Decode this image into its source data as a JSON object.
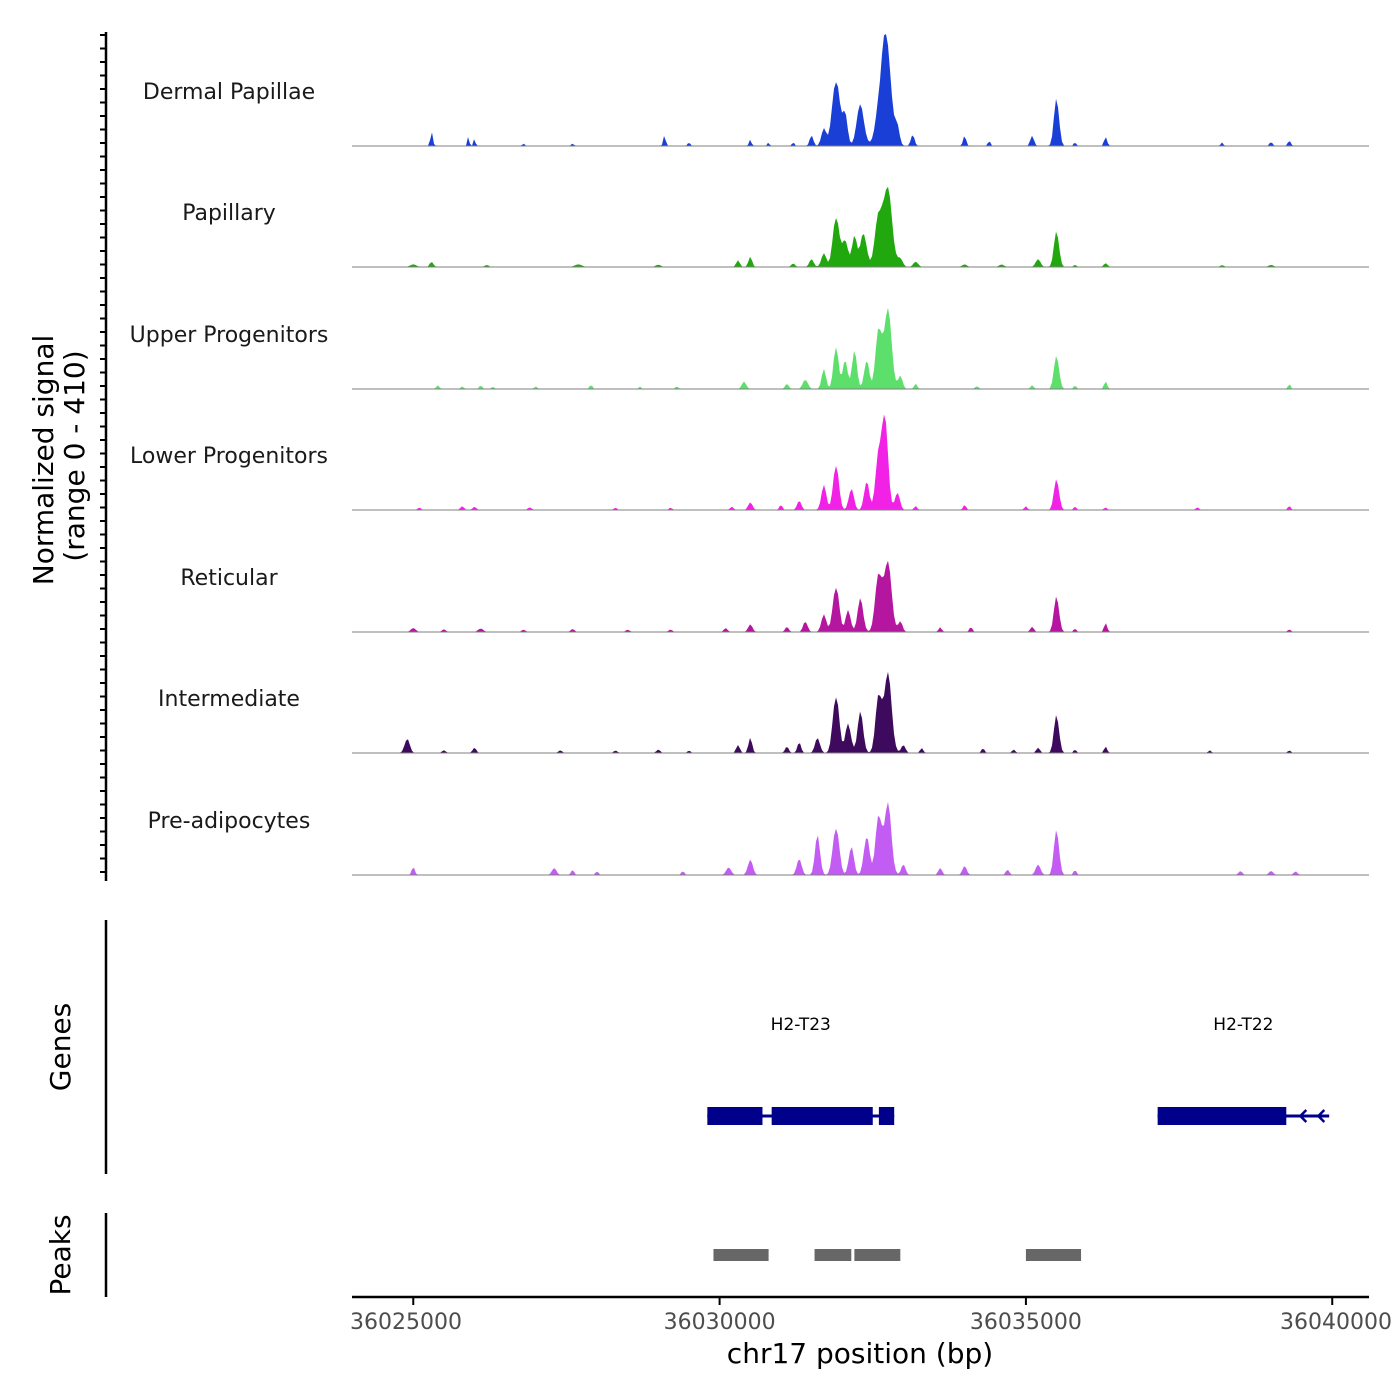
{
  "chart_data": {
    "type": "area",
    "title": "",
    "ylabel": "Normalized signal",
    "ylabel_range": "(range 0 - 410)",
    "ylim": [
      0,
      410
    ],
    "xlabel": "chr17 position (bp)",
    "xlim": [
      36024000,
      36040600
    ],
    "xticks": [
      36025000,
      36030000,
      36035000,
      36040000
    ],
    "xtick_labels": [
      "36025000",
      "36030000",
      "36035000",
      "36040000"
    ],
    "series": [
      {
        "name": "Dermal Papillae",
        "color": "#1a3fd6",
        "peaks": [
          [
            36025300,
            55,
            20
          ],
          [
            36025900,
            40,
            15
          ],
          [
            36026000,
            30,
            15
          ],
          [
            36026800,
            10,
            20
          ],
          [
            36027600,
            10,
            20
          ],
          [
            36029100,
            40,
            20
          ],
          [
            36029500,
            20,
            15
          ],
          [
            36030500,
            25,
            20
          ],
          [
            36030800,
            15,
            15
          ],
          [
            36031200,
            20,
            15
          ],
          [
            36031500,
            40,
            30
          ],
          [
            36031700,
            70,
            40
          ],
          [
            36031900,
            275,
            60
          ],
          [
            36032050,
            120,
            40
          ],
          [
            36032300,
            160,
            60
          ],
          [
            36032700,
            435,
            90
          ],
          [
            36032900,
            60,
            35
          ],
          [
            36033150,
            45,
            30
          ],
          [
            36034000,
            40,
            25
          ],
          [
            36034400,
            20,
            20
          ],
          [
            36035100,
            40,
            30
          ],
          [
            36035500,
            200,
            40
          ],
          [
            36035800,
            20,
            15
          ],
          [
            36036300,
            35,
            25
          ],
          [
            36038200,
            15,
            20
          ],
          [
            36039000,
            15,
            25
          ],
          [
            36039300,
            20,
            25
          ]
        ]
      },
      {
        "name": "Papillary",
        "color": "#21a80e",
        "peaks": [
          [
            36025000,
            10,
            50
          ],
          [
            36025300,
            20,
            30
          ],
          [
            36026200,
            8,
            30
          ],
          [
            36027700,
            10,
            60
          ],
          [
            36029000,
            10,
            40
          ],
          [
            36030300,
            25,
            30
          ],
          [
            36030500,
            40,
            30
          ],
          [
            36031200,
            15,
            30
          ],
          [
            36031500,
            30,
            35
          ],
          [
            36031700,
            55,
            40
          ],
          [
            36031900,
            210,
            50
          ],
          [
            36032050,
            100,
            50
          ],
          [
            36032200,
            120,
            40
          ],
          [
            36032350,
            140,
            50
          ],
          [
            36032600,
            210,
            60
          ],
          [
            36032750,
            290,
            70
          ],
          [
            36032950,
            30,
            40
          ],
          [
            36033200,
            20,
            40
          ],
          [
            36034000,
            10,
            40
          ],
          [
            36034600,
            10,
            40
          ],
          [
            36035200,
            30,
            40
          ],
          [
            36035500,
            150,
            40
          ],
          [
            36035800,
            10,
            20
          ],
          [
            36036300,
            15,
            30
          ],
          [
            36038200,
            8,
            30
          ],
          [
            36039000,
            8,
            40
          ]
        ]
      },
      {
        "name": "Upper Progenitors",
        "color": "#5ddf6c",
        "peaks": [
          [
            36025400,
            15,
            25
          ],
          [
            36025800,
            10,
            25
          ],
          [
            36026100,
            15,
            25
          ],
          [
            36026300,
            10,
            20
          ],
          [
            36027000,
            10,
            25
          ],
          [
            36027900,
            15,
            25
          ],
          [
            36028700,
            10,
            20
          ],
          [
            36029300,
            10,
            25
          ],
          [
            36030400,
            30,
            35
          ],
          [
            36031100,
            20,
            30
          ],
          [
            36031400,
            40,
            40
          ],
          [
            36031700,
            80,
            35
          ],
          [
            36031900,
            180,
            40
          ],
          [
            36032050,
            110,
            40
          ],
          [
            36032200,
            150,
            40
          ],
          [
            36032400,
            120,
            40
          ],
          [
            36032600,
            250,
            50
          ],
          [
            36032750,
            300,
            60
          ],
          [
            36032950,
            50,
            35
          ],
          [
            36033200,
            20,
            25
          ],
          [
            36034200,
            10,
            30
          ],
          [
            36035100,
            15,
            25
          ],
          [
            36035500,
            140,
            40
          ],
          [
            36035800,
            15,
            20
          ],
          [
            36036300,
            30,
            25
          ],
          [
            36039300,
            20,
            20
          ]
        ]
      },
      {
        "name": "Lower Progenitors",
        "color": "#f221e6",
        "peaks": [
          [
            36025100,
            10,
            25
          ],
          [
            36025800,
            15,
            30
          ],
          [
            36026000,
            12,
            30
          ],
          [
            36026900,
            10,
            30
          ],
          [
            36028300,
            10,
            25
          ],
          [
            36029200,
            10,
            25
          ],
          [
            36030200,
            15,
            25
          ],
          [
            36030500,
            30,
            35
          ],
          [
            36031000,
            20,
            25
          ],
          [
            36031300,
            35,
            35
          ],
          [
            36031700,
            100,
            40
          ],
          [
            36031900,
            190,
            45
          ],
          [
            36032150,
            90,
            40
          ],
          [
            36032400,
            120,
            40
          ],
          [
            36032600,
            230,
            50
          ],
          [
            36032700,
            330,
            50
          ],
          [
            36032900,
            70,
            40
          ],
          [
            36033200,
            15,
            25
          ],
          [
            36034000,
            20,
            25
          ],
          [
            36035000,
            15,
            25
          ],
          [
            36035500,
            130,
            40
          ],
          [
            36035800,
            15,
            20
          ],
          [
            36036300,
            10,
            25
          ],
          [
            36037800,
            10,
            25
          ],
          [
            36039300,
            15,
            25
          ]
        ]
      },
      {
        "name": "Reticular",
        "color": "#b5169f",
        "peaks": [
          [
            36025000,
            15,
            40
          ],
          [
            36025500,
            10,
            30
          ],
          [
            36026100,
            15,
            40
          ],
          [
            36026800,
            10,
            30
          ],
          [
            36027600,
            12,
            30
          ],
          [
            36028500,
            10,
            30
          ],
          [
            36029200,
            10,
            30
          ],
          [
            36030100,
            15,
            30
          ],
          [
            36030500,
            30,
            35
          ],
          [
            36031100,
            20,
            30
          ],
          [
            36031400,
            45,
            35
          ],
          [
            36031700,
            70,
            40
          ],
          [
            36031900,
            190,
            50
          ],
          [
            36032100,
            90,
            40
          ],
          [
            36032300,
            130,
            45
          ],
          [
            36032600,
            240,
            55
          ],
          [
            36032750,
            260,
            60
          ],
          [
            36032950,
            40,
            35
          ],
          [
            36033600,
            20,
            25
          ],
          [
            36034100,
            20,
            25
          ],
          [
            36035100,
            20,
            30
          ],
          [
            36035500,
            150,
            40
          ],
          [
            36035800,
            15,
            20
          ],
          [
            36036300,
            35,
            25
          ],
          [
            36039300,
            10,
            25
          ]
        ]
      },
      {
        "name": "Intermediate",
        "color": "#3d0a5e",
        "peaks": [
          [
            36024900,
            60,
            40
          ],
          [
            36025500,
            10,
            30
          ],
          [
            36026000,
            20,
            30
          ],
          [
            36027400,
            10,
            30
          ],
          [
            36028300,
            10,
            30
          ],
          [
            36029000,
            15,
            30
          ],
          [
            36029500,
            10,
            25
          ],
          [
            36030300,
            30,
            30
          ],
          [
            36030500,
            60,
            30
          ],
          [
            36031100,
            25,
            30
          ],
          [
            36031300,
            40,
            30
          ],
          [
            36031600,
            60,
            40
          ],
          [
            36031900,
            240,
            50
          ],
          [
            36032100,
            120,
            45
          ],
          [
            36032300,
            160,
            45
          ],
          [
            36032600,
            240,
            50
          ],
          [
            36032750,
            300,
            60
          ],
          [
            36033000,
            30,
            35
          ],
          [
            36033300,
            20,
            25
          ],
          [
            36034300,
            20,
            25
          ],
          [
            36034800,
            15,
            25
          ],
          [
            36035200,
            20,
            30
          ],
          [
            36035500,
            160,
            40
          ],
          [
            36035800,
            15,
            20
          ],
          [
            36036300,
            25,
            25
          ],
          [
            36038000,
            10,
            25
          ],
          [
            36039300,
            10,
            25
          ]
        ]
      },
      {
        "name": "Pre-adipocytes",
        "color": "#c25cf2",
        "peaks": [
          [
            36025000,
            30,
            25
          ],
          [
            36027300,
            30,
            35
          ],
          [
            36027600,
            20,
            25
          ],
          [
            36028000,
            15,
            25
          ],
          [
            36029400,
            15,
            25
          ],
          [
            36030150,
            30,
            40
          ],
          [
            36030500,
            60,
            40
          ],
          [
            36031300,
            60,
            40
          ],
          [
            36031600,
            160,
            40
          ],
          [
            36031900,
            200,
            50
          ],
          [
            36032150,
            120,
            40
          ],
          [
            36032400,
            160,
            45
          ],
          [
            36032600,
            250,
            50
          ],
          [
            36032750,
            270,
            55
          ],
          [
            36033000,
            40,
            35
          ],
          [
            36033600,
            30,
            30
          ],
          [
            36034000,
            35,
            35
          ],
          [
            36034700,
            20,
            30
          ],
          [
            36035200,
            40,
            40
          ],
          [
            36035500,
            190,
            40
          ],
          [
            36035800,
            20,
            25
          ],
          [
            36038500,
            15,
            30
          ],
          [
            36039000,
            15,
            35
          ],
          [
            36039400,
            15,
            30
          ]
        ]
      }
    ],
    "genes": [
      {
        "name": "H2-T23",
        "label": "H2-T23",
        "strand": "-",
        "segments": [
          [
            36029800,
            36030700
          ],
          [
            36030850,
            36032500
          ],
          [
            36032600,
            36032850
          ]
        ]
      },
      {
        "name": "H2-T22",
        "label": "H2-T22",
        "strand": "-",
        "segments": [
          [
            36037150,
            36039250
          ]
        ],
        "intron_end": 36039950
      }
    ],
    "peaks_track": [
      [
        36029900,
        36030800
      ],
      [
        36031550,
        36032150
      ],
      [
        36032200,
        36032950
      ],
      [
        36035000,
        36035900
      ]
    ],
    "track_titles": {
      "genes": "Genes",
      "peaks": "Peaks"
    },
    "colors": {
      "gene": "#00008b",
      "peak": "#676767",
      "axis": "#000000",
      "baseline": "#7f7f7f"
    }
  }
}
